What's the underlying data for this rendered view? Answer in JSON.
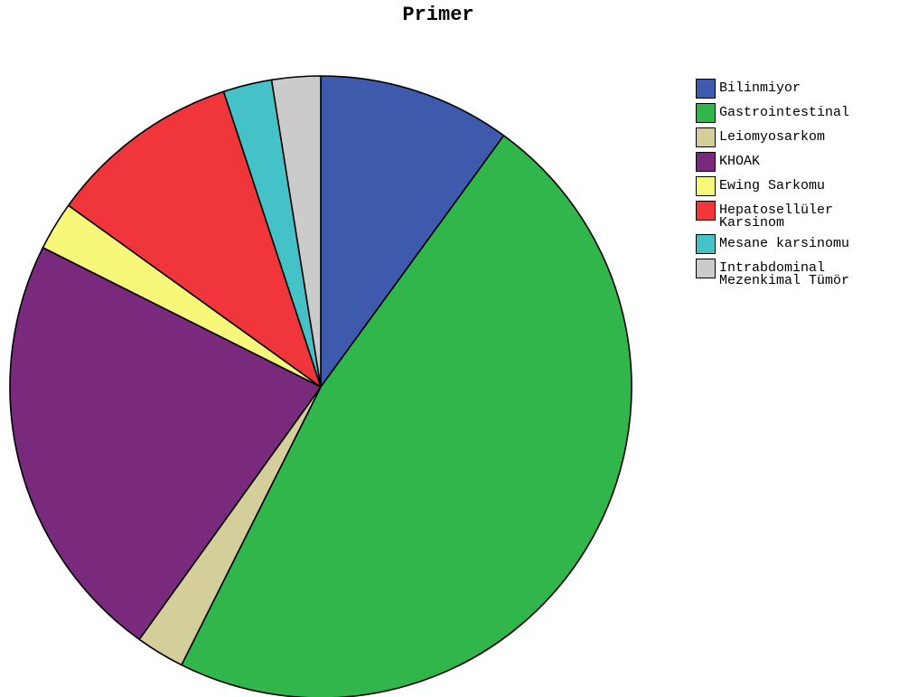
{
  "chart_data": {
    "type": "pie",
    "title": "Primer",
    "legend_position": "right",
    "slices": [
      {
        "label": "Bilinmiyor",
        "value": 10.3,
        "color": "#3d5aad"
      },
      {
        "label": "Gastrointestinal",
        "value": 48.7,
        "color": "#30b64a"
      },
      {
        "label": "Leiomyosarkom",
        "value": 2.6,
        "color": "#d3ce9a"
      },
      {
        "label": "KHOAK",
        "value": 23.1,
        "color": "#7a2a7c"
      },
      {
        "label": "Ewing Sarkomu",
        "value": 2.6,
        "color": "#f7f77a"
      },
      {
        "label": "Hepatosellüler\nKarsinom",
        "value": 10.3,
        "color": "#f0363a"
      },
      {
        "label": "Mesane karsinomu",
        "value": 2.6,
        "color": "#45c1c8"
      },
      {
        "label": "Intrabdominal\nMezenkimal Tümör",
        "value": 2.6,
        "color": "#cbcbcb"
      }
    ]
  }
}
